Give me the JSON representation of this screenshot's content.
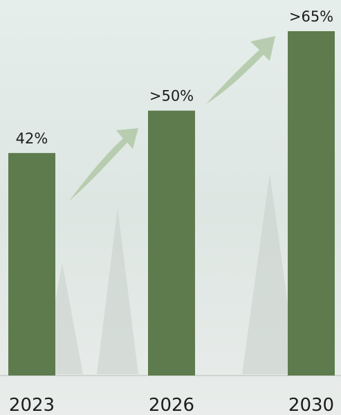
{
  "chart_data": {
    "type": "bar",
    "categories": [
      "2023",
      "2026",
      "2030"
    ],
    "values": [
      42,
      50,
      65
    ],
    "value_labels": [
      "42%",
      ">50%",
      ">65%"
    ],
    "color": "#5e7b4e"
  }
}
